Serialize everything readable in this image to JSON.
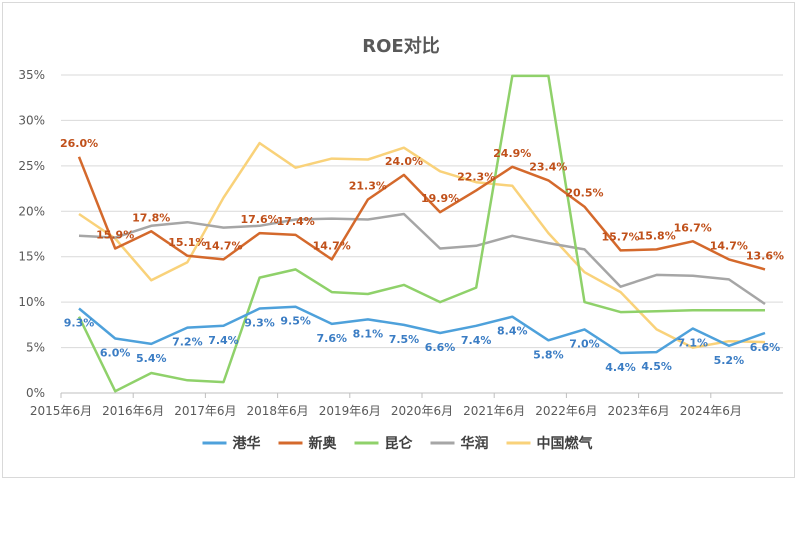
{
  "chart_data": {
    "type": "line",
    "title": "ROE对比",
    "y_ticks": [
      "0%",
      "5%",
      "10%",
      "15%",
      "20%",
      "25%",
      "30%",
      "35%"
    ],
    "ylim": [
      0,
      35
    ],
    "x_tick_labels": [
      "2015年6月",
      "2016年6月",
      "2017年6月",
      "2018年6月",
      "2019年6月",
      "2020年6月",
      "2021年6月",
      "2022年6月",
      "2023年6月",
      "2024年6月"
    ],
    "grid": true,
    "legend_position": "bottom",
    "series": [
      {
        "name": "港华",
        "color": "#4ea1db",
        "label_color": "#3b7dc4",
        "values": [
          9.3,
          6.0,
          5.4,
          7.2,
          7.4,
          9.3,
          9.5,
          7.6,
          8.1,
          7.5,
          6.6,
          7.4,
          8.4,
          5.8,
          7.0,
          4.4,
          4.5,
          7.1,
          5.2,
          6.6
        ],
        "labels": [
          "9.3%",
          "6.0%",
          "5.4%",
          "7.2%",
          "7.4%",
          "9.3%",
          "9.5%",
          "7.6%",
          "8.1%",
          "7.5%",
          "6.6%",
          "7.4%",
          "8.4%",
          "5.8%",
          "7.0%",
          "4.4%",
          "4.5%",
          "7.1%",
          "5.2%",
          "6.6%"
        ]
      },
      {
        "name": "新奥",
        "color": "#d4692c",
        "label_color": "#c0501a",
        "values": [
          26.0,
          15.9,
          17.8,
          15.1,
          14.7,
          17.6,
          17.4,
          14.7,
          21.3,
          24.0,
          19.9,
          22.3,
          24.9,
          23.4,
          20.5,
          15.7,
          15.8,
          16.7,
          14.7,
          13.6
        ],
        "labels": [
          "26.0%",
          "15.9%",
          "17.8%",
          "15.1%",
          "14.7%",
          "17.6%",
          "17.4%",
          "14.7%",
          "21.3%",
          "24.0%",
          "19.9%",
          "22.3%",
          "24.9%",
          "23.4%",
          "20.5%",
          "15.7%",
          "15.8%",
          "16.7%",
          "14.7%",
          "13.6%"
        ]
      },
      {
        "name": "昆仑",
        "color": "#8fd16a",
        "values": [
          8.4,
          0.2,
          2.2,
          1.4,
          1.2,
          12.7,
          13.6,
          11.1,
          10.9,
          11.9,
          10.0,
          11.6,
          34.9,
          34.9,
          10.0,
          8.9,
          9.0,
          9.1,
          9.1,
          9.1
        ]
      },
      {
        "name": "华润",
        "color": "#a6a6a6",
        "values": [
          17.3,
          17.1,
          18.4,
          18.8,
          18.2,
          18.4,
          19.1,
          19.2,
          19.1,
          19.7,
          15.9,
          16.2,
          17.3,
          16.5,
          15.8,
          11.7,
          13.0,
          12.9,
          12.5,
          9.8
        ]
      },
      {
        "name": "中国燃气",
        "color": "#f9d27a",
        "values": [
          19.7,
          17.0,
          12.4,
          14.4,
          21.5,
          27.5,
          24.8,
          25.8,
          25.7,
          27.0,
          24.4,
          23.2,
          22.8,
          17.6,
          13.3,
          11.1,
          7.0,
          5.0,
          5.7,
          5.6
        ]
      }
    ]
  }
}
